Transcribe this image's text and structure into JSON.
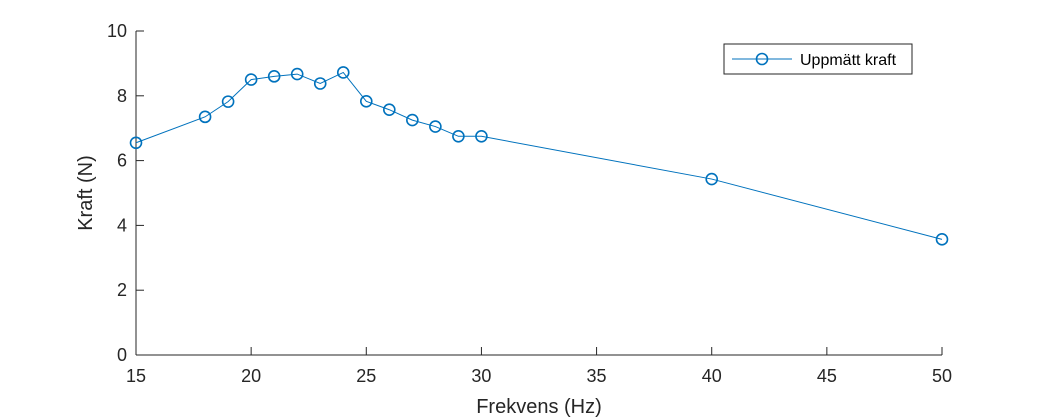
{
  "chart_data": {
    "type": "line",
    "title": "",
    "xlabel": "Frekvens (Hz)",
    "ylabel": "Kraft (N)",
    "xlim": [
      15,
      50
    ],
    "ylim": [
      0,
      10
    ],
    "xticks": [
      15,
      20,
      25,
      30,
      35,
      40,
      45,
      50
    ],
    "yticks": [
      0,
      2,
      4,
      6,
      8,
      10
    ],
    "grid": false,
    "legend_position": "top-right",
    "series": [
      {
        "name": "Uppmätt kraft",
        "color": "#0072BD",
        "marker": "circle",
        "x": [
          15,
          18,
          19,
          20,
          21,
          22,
          23,
          24,
          25,
          26,
          27,
          28,
          29,
          30,
          40,
          50
        ],
        "y": [
          6.55,
          7.35,
          7.82,
          8.5,
          8.6,
          8.67,
          8.38,
          8.72,
          7.83,
          7.57,
          7.25,
          7.05,
          6.75,
          6.75,
          5.43,
          3.57
        ]
      }
    ]
  }
}
